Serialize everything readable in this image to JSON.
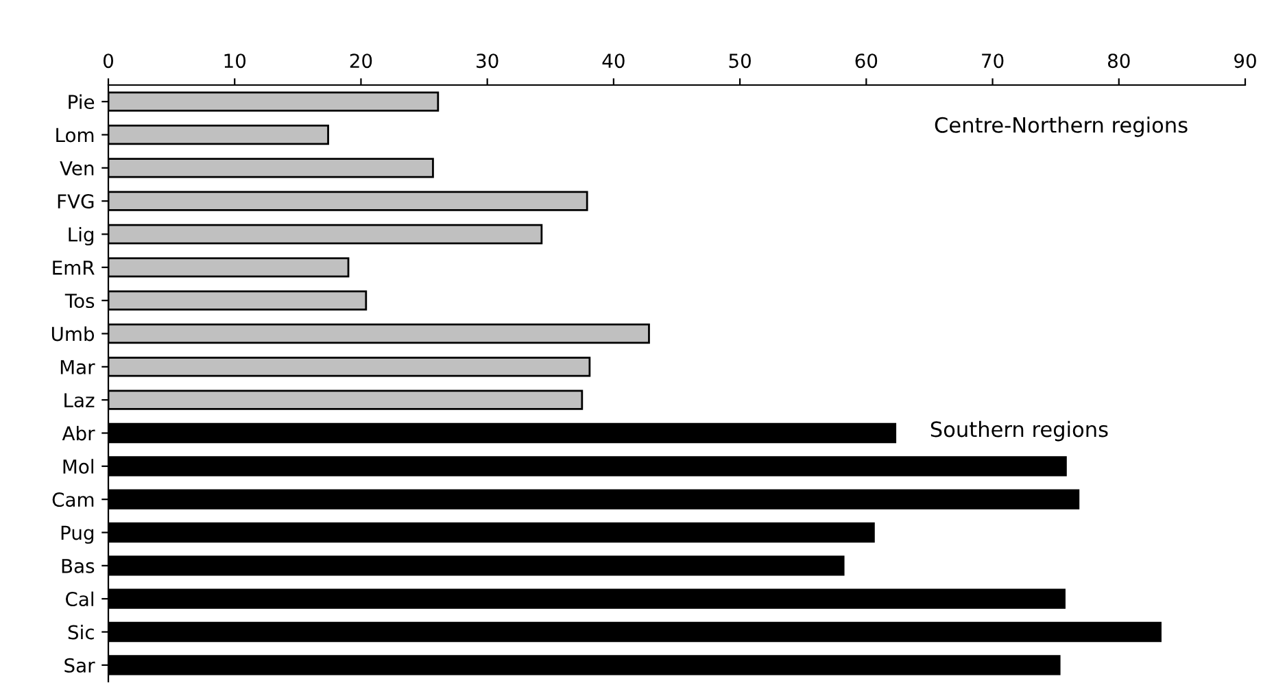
{
  "chart_data": {
    "type": "bar",
    "orientation": "horizontal",
    "categories": [
      "Pie",
      "Lom",
      "Ven",
      "FVG",
      "Lig",
      "EmR",
      "Tos",
      "Umb",
      "Mar",
      "Laz",
      "Abr",
      "Mol",
      "Cam",
      "Pug",
      "Bas",
      "Cal",
      "Sic",
      "Sar"
    ],
    "values": [
      26.1,
      17.4,
      25.7,
      37.9,
      34.3,
      19.0,
      20.4,
      42.8,
      38.1,
      37.5,
      62.3,
      75.8,
      76.8,
      60.6,
      58.2,
      75.7,
      83.3,
      75.3
    ],
    "colors": [
      "#c0c0c0",
      "#c0c0c0",
      "#c0c0c0",
      "#c0c0c0",
      "#c0c0c0",
      "#c0c0c0",
      "#c0c0c0",
      "#c0c0c0",
      "#c0c0c0",
      "#c0c0c0",
      "#000000",
      "#000000",
      "#000000",
      "#000000",
      "#000000",
      "#000000",
      "#000000",
      "#000000"
    ],
    "xlim": [
      0,
      90
    ],
    "xticks": [
      0,
      10,
      20,
      30,
      40,
      50,
      60,
      70,
      80,
      90
    ],
    "annotations": [
      "Centre-Northern regions",
      "Southern regions"
    ],
    "grid": false,
    "legend": false
  }
}
